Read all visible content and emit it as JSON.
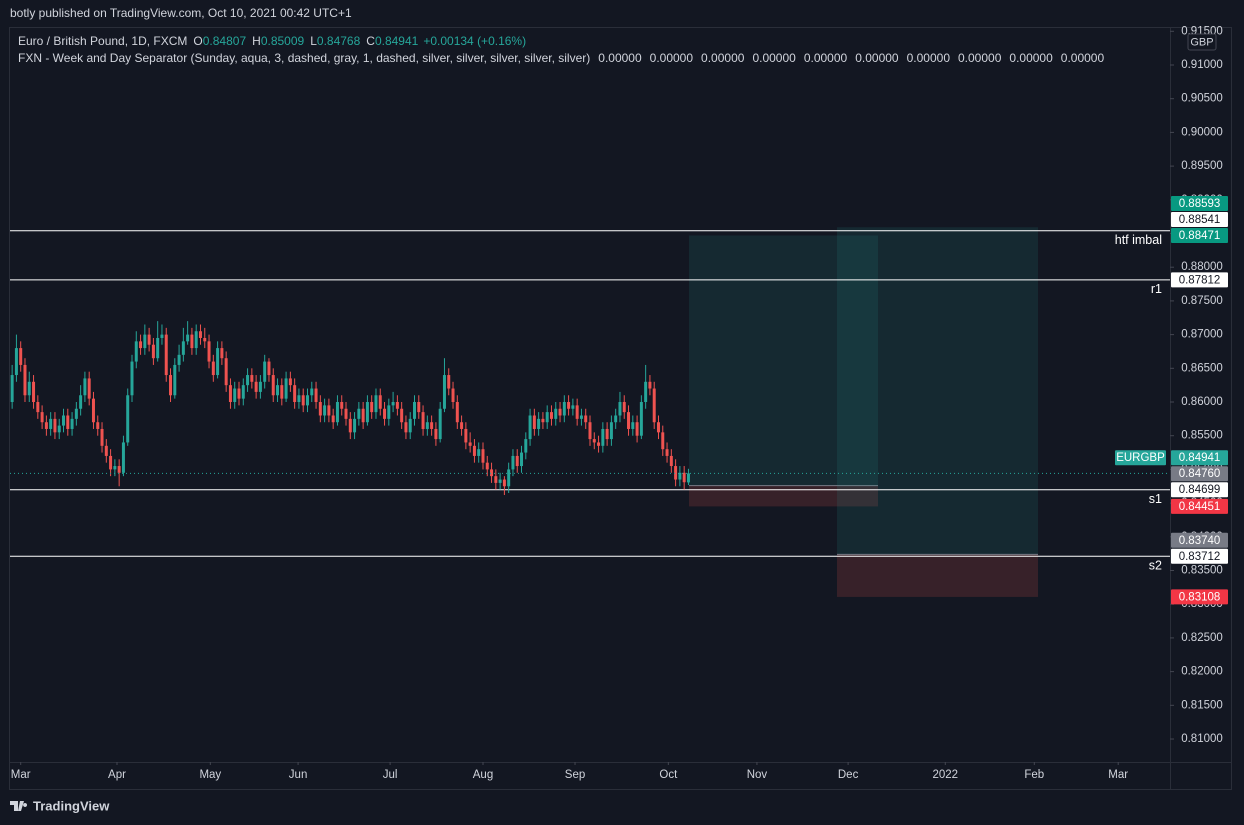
{
  "header": "botly published on TradingView.com, Oct 10, 2021 00:42 UTC+1",
  "footer": "TradingView",
  "chart_data": {
    "type": "candlestick",
    "title": "Euro / British Pound, 1D, FXCM",
    "ohlc_labels": [
      "O",
      "H",
      "L",
      "C"
    ],
    "change": "+0.00134 (+0.16%)",
    "indicator": "FXN - Week and Day Separator (Sunday, aqua, 3, dashed, gray, 1, dashed, silver, silver, silver, silver, silver)",
    "indicator_values": [
      "0.00000",
      "0.00000",
      "0.00000",
      "0.00000",
      "0.00000",
      "0.00000",
      "0.00000",
      "0.00000",
      "0.00000",
      "0.00000"
    ],
    "currency": "GBP",
    "symbol": "EURGBP",
    "up_color": "#26a69a",
    "down_color": "#ef5350",
    "ohlc": [
      [
        0.86,
        0.8655,
        0.859,
        0.864
      ],
      [
        0.864,
        0.87,
        0.863,
        0.868
      ],
      [
        0.868,
        0.869,
        0.8645,
        0.8655
      ],
      [
        0.8655,
        0.8665,
        0.86,
        0.861
      ],
      [
        0.861,
        0.8645,
        0.86,
        0.863
      ],
      [
        0.863,
        0.864,
        0.859,
        0.86
      ],
      [
        0.86,
        0.861,
        0.8575,
        0.8585
      ],
      [
        0.8585,
        0.8595,
        0.856,
        0.857
      ],
      [
        0.857,
        0.858,
        0.855,
        0.856
      ],
      [
        0.856,
        0.8585,
        0.855,
        0.8575
      ],
      [
        0.8575,
        0.8585,
        0.8545,
        0.8555
      ],
      [
        0.8555,
        0.8575,
        0.8545,
        0.8565
      ],
      [
        0.8565,
        0.859,
        0.8555,
        0.858
      ],
      [
        0.858,
        0.859,
        0.855,
        0.856
      ],
      [
        0.856,
        0.8585,
        0.855,
        0.8575
      ],
      [
        0.8575,
        0.86,
        0.8565,
        0.859
      ],
      [
        0.859,
        0.8625,
        0.858,
        0.861
      ],
      [
        0.861,
        0.8645,
        0.86,
        0.8635
      ],
      [
        0.8635,
        0.8645,
        0.8595,
        0.8605
      ],
      [
        0.8605,
        0.8615,
        0.856,
        0.857
      ],
      [
        0.857,
        0.858,
        0.855,
        0.856
      ],
      [
        0.856,
        0.857,
        0.8525,
        0.8535
      ],
      [
        0.8535,
        0.8545,
        0.851,
        0.852
      ],
      [
        0.852,
        0.853,
        0.849,
        0.85
      ],
      [
        0.85,
        0.8515,
        0.849,
        0.8505
      ],
      [
        0.8505,
        0.8515,
        0.8475,
        0.8495
      ],
      [
        0.8495,
        0.855,
        0.849,
        0.854
      ],
      [
        0.854,
        0.862,
        0.8535,
        0.861
      ],
      [
        0.861,
        0.867,
        0.86,
        0.866
      ],
      [
        0.866,
        0.8705,
        0.865,
        0.869
      ],
      [
        0.869,
        0.87,
        0.867,
        0.868
      ],
      [
        0.868,
        0.8715,
        0.867,
        0.87
      ],
      [
        0.87,
        0.871,
        0.8675,
        0.8685
      ],
      [
        0.8685,
        0.8695,
        0.8655,
        0.8665
      ],
      [
        0.8665,
        0.872,
        0.866,
        0.8695
      ],
      [
        0.8695,
        0.8715,
        0.8685,
        0.87
      ],
      [
        0.87,
        0.871,
        0.863,
        0.864
      ],
      [
        0.864,
        0.865,
        0.86,
        0.861
      ],
      [
        0.861,
        0.8665,
        0.8605,
        0.8655
      ],
      [
        0.8655,
        0.8685,
        0.8645,
        0.867
      ],
      [
        0.867,
        0.871,
        0.866,
        0.869
      ],
      [
        0.869,
        0.872,
        0.8685,
        0.87
      ],
      [
        0.87,
        0.871,
        0.867,
        0.868
      ],
      [
        0.868,
        0.8715,
        0.867,
        0.8705
      ],
      [
        0.8705,
        0.8715,
        0.8685,
        0.8695
      ],
      [
        0.8695,
        0.871,
        0.868,
        0.869
      ],
      [
        0.869,
        0.87,
        0.865,
        0.866
      ],
      [
        0.866,
        0.867,
        0.863,
        0.864
      ],
      [
        0.864,
        0.869,
        0.8635,
        0.868
      ],
      [
        0.868,
        0.869,
        0.8655,
        0.8665
      ],
      [
        0.8665,
        0.8675,
        0.8615,
        0.8625
      ],
      [
        0.8625,
        0.8635,
        0.859,
        0.86
      ],
      [
        0.86,
        0.863,
        0.859,
        0.862
      ],
      [
        0.862,
        0.863,
        0.8595,
        0.8605
      ],
      [
        0.8605,
        0.8635,
        0.8595,
        0.8625
      ],
      [
        0.8625,
        0.865,
        0.8615,
        0.864
      ],
      [
        0.864,
        0.865,
        0.862,
        0.863
      ],
      [
        0.863,
        0.864,
        0.8605,
        0.8615
      ],
      [
        0.8615,
        0.864,
        0.8605,
        0.863
      ],
      [
        0.863,
        0.867,
        0.862,
        0.866
      ],
      [
        0.866,
        0.8665,
        0.863,
        0.864
      ],
      [
        0.864,
        0.865,
        0.86,
        0.861
      ],
      [
        0.861,
        0.8635,
        0.86,
        0.8625
      ],
      [
        0.8625,
        0.8635,
        0.8595,
        0.8605
      ],
      [
        0.8605,
        0.8645,
        0.86,
        0.8635
      ],
      [
        0.8635,
        0.8645,
        0.8615,
        0.8625
      ],
      [
        0.8625,
        0.8635,
        0.859,
        0.86
      ],
      [
        0.86,
        0.862,
        0.859,
        0.861
      ],
      [
        0.861,
        0.862,
        0.8585,
        0.8595
      ],
      [
        0.8595,
        0.862,
        0.8585,
        0.861
      ],
      [
        0.861,
        0.863,
        0.86,
        0.862
      ],
      [
        0.862,
        0.863,
        0.859,
        0.86
      ],
      [
        0.86,
        0.861,
        0.857,
        0.858
      ],
      [
        0.858,
        0.8605,
        0.857,
        0.8595
      ],
      [
        0.8595,
        0.8605,
        0.857,
        0.858
      ],
      [
        0.858,
        0.859,
        0.856,
        0.857
      ],
      [
        0.857,
        0.861,
        0.8565,
        0.86
      ],
      [
        0.86,
        0.861,
        0.858,
        0.859
      ],
      [
        0.859,
        0.86,
        0.8565,
        0.8575
      ],
      [
        0.8575,
        0.8585,
        0.8545,
        0.8555
      ],
      [
        0.8555,
        0.8585,
        0.8545,
        0.8575
      ],
      [
        0.8575,
        0.86,
        0.8565,
        0.859
      ],
      [
        0.859,
        0.86,
        0.856,
        0.857
      ],
      [
        0.857,
        0.861,
        0.8565,
        0.86
      ],
      [
        0.86,
        0.861,
        0.8575,
        0.8585
      ],
      [
        0.8585,
        0.862,
        0.8575,
        0.861
      ],
      [
        0.861,
        0.862,
        0.858,
        0.859
      ],
      [
        0.859,
        0.86,
        0.8565,
        0.8575
      ],
      [
        0.8575,
        0.8605,
        0.8565,
        0.8595
      ],
      [
        0.8595,
        0.8615,
        0.8585,
        0.86
      ],
      [
        0.86,
        0.861,
        0.858,
        0.859
      ],
      [
        0.859,
        0.86,
        0.856,
        0.857
      ],
      [
        0.857,
        0.858,
        0.8545,
        0.8555
      ],
      [
        0.8555,
        0.8585,
        0.8545,
        0.8575
      ],
      [
        0.8575,
        0.861,
        0.8565,
        0.86
      ],
      [
        0.86,
        0.861,
        0.8575,
        0.8585
      ],
      [
        0.8585,
        0.8595,
        0.855,
        0.856
      ],
      [
        0.856,
        0.858,
        0.855,
        0.857
      ],
      [
        0.857,
        0.858,
        0.855,
        0.856
      ],
      [
        0.856,
        0.857,
        0.8535,
        0.8545
      ],
      [
        0.8545,
        0.86,
        0.854,
        0.859
      ],
      [
        0.859,
        0.8665,
        0.8585,
        0.864
      ],
      [
        0.864,
        0.865,
        0.861,
        0.862
      ],
      [
        0.862,
        0.863,
        0.859,
        0.86
      ],
      [
        0.86,
        0.861,
        0.856,
        0.857
      ],
      [
        0.857,
        0.858,
        0.855,
        0.856
      ],
      [
        0.856,
        0.857,
        0.853,
        0.854
      ],
      [
        0.854,
        0.8555,
        0.8525,
        0.8535
      ],
      [
        0.8535,
        0.8545,
        0.851,
        0.852
      ],
      [
        0.852,
        0.854,
        0.851,
        0.853
      ],
      [
        0.853,
        0.854,
        0.85,
        0.851
      ],
      [
        0.851,
        0.852,
        0.849,
        0.85
      ],
      [
        0.85,
        0.851,
        0.848,
        0.849
      ],
      [
        0.849,
        0.85,
        0.847,
        0.848
      ],
      [
        0.848,
        0.8495,
        0.847,
        0.8485
      ],
      [
        0.8485,
        0.849,
        0.8462,
        0.8475
      ],
      [
        0.8475,
        0.851,
        0.8465,
        0.85
      ],
      [
        0.85,
        0.853,
        0.849,
        0.852
      ],
      [
        0.852,
        0.853,
        0.8495,
        0.8505
      ],
      [
        0.8505,
        0.8535,
        0.8495,
        0.8525
      ],
      [
        0.8525,
        0.8555,
        0.8515,
        0.8545
      ],
      [
        0.8545,
        0.859,
        0.8535,
        0.858
      ],
      [
        0.858,
        0.859,
        0.855,
        0.856
      ],
      [
        0.856,
        0.8585,
        0.855,
        0.8575
      ],
      [
        0.8575,
        0.8585,
        0.856,
        0.857
      ],
      [
        0.857,
        0.8595,
        0.856,
        0.8585
      ],
      [
        0.8585,
        0.8595,
        0.8565,
        0.8575
      ],
      [
        0.8575,
        0.86,
        0.8565,
        0.859
      ],
      [
        0.859,
        0.86,
        0.857,
        0.858
      ],
      [
        0.858,
        0.861,
        0.857,
        0.86
      ],
      [
        0.86,
        0.861,
        0.858,
        0.859
      ],
      [
        0.859,
        0.8605,
        0.858,
        0.8595
      ],
      [
        0.8595,
        0.8605,
        0.8565,
        0.8575
      ],
      [
        0.8575,
        0.859,
        0.8565,
        0.858
      ],
      [
        0.858,
        0.859,
        0.856,
        0.857
      ],
      [
        0.857,
        0.858,
        0.8535,
        0.8545
      ],
      [
        0.8545,
        0.8555,
        0.853,
        0.854
      ],
      [
        0.854,
        0.855,
        0.8525,
        0.8535
      ],
      [
        0.8535,
        0.857,
        0.8525,
        0.856
      ],
      [
        0.856,
        0.857,
        0.8535,
        0.8545
      ],
      [
        0.8545,
        0.858,
        0.8535,
        0.857
      ],
      [
        0.857,
        0.859,
        0.856,
        0.858
      ],
      [
        0.858,
        0.8615,
        0.857,
        0.86
      ],
      [
        0.86,
        0.861,
        0.8575,
        0.8585
      ],
      [
        0.8585,
        0.8595,
        0.855,
        0.856
      ],
      [
        0.856,
        0.858,
        0.855,
        0.857
      ],
      [
        0.857,
        0.858,
        0.854,
        0.855
      ],
      [
        0.855,
        0.861,
        0.8545,
        0.86
      ],
      [
        0.86,
        0.8655,
        0.859,
        0.863
      ],
      [
        0.863,
        0.864,
        0.861,
        0.862
      ],
      [
        0.862,
        0.863,
        0.856,
        0.857
      ],
      [
        0.857,
        0.858,
        0.8545,
        0.8555
      ],
      [
        0.8555,
        0.8565,
        0.852,
        0.853
      ],
      [
        0.853,
        0.854,
        0.851,
        0.852
      ],
      [
        0.852,
        0.853,
        0.8495,
        0.8505
      ],
      [
        0.8505,
        0.8515,
        0.8475,
        0.8485
      ],
      [
        0.8485,
        0.8505,
        0.8475,
        0.8495
      ],
      [
        0.8495,
        0.8505,
        0.847,
        0.8481
      ],
      [
        0.84807,
        0.85009,
        0.84768,
        0.84941
      ]
    ],
    "xlim": [
      -0.5,
      270.5
    ],
    "xticks": [
      {
        "value": 2,
        "label": "Mar"
      },
      {
        "value": 24.5,
        "label": "Apr"
      },
      {
        "value": 46.3,
        "label": "May"
      },
      {
        "value": 66.8,
        "label": "Jun"
      },
      {
        "value": 88.3,
        "label": "Jul"
      },
      {
        "value": 110,
        "label": "Aug"
      },
      {
        "value": 131.5,
        "label": "Sep"
      },
      {
        "value": 153.3,
        "label": "Oct"
      },
      {
        "value": 174,
        "label": "Nov"
      },
      {
        "value": 195.3,
        "label": "Dec"
      },
      {
        "value": 218,
        "label": "2022"
      },
      {
        "value": 238.8,
        "label": "Feb"
      },
      {
        "value": 258.4,
        "label": "Mar"
      }
    ],
    "ylim": [
      0.80659,
      0.91638
    ],
    "yticks": [
      {
        "value": 0.81,
        "label": "0.81000"
      },
      {
        "value": 0.815,
        "label": "0.81500"
      },
      {
        "value": 0.82,
        "label": "0.82000"
      },
      {
        "value": 0.825,
        "label": "0.82500"
      },
      {
        "value": 0.83,
        "label": "0.83000"
      },
      {
        "value": 0.835,
        "label": "0.83500"
      },
      {
        "value": 0.84,
        "label": "0.84000"
      },
      {
        "value": 0.845,
        "label": "0.84500"
      },
      {
        "value": 0.85,
        "label": "0.85000"
      },
      {
        "value": 0.855,
        "label": "0.85500"
      },
      {
        "value": 0.86,
        "label": "0.86000"
      },
      {
        "value": 0.865,
        "label": "0.86500"
      },
      {
        "value": 0.87,
        "label": "0.87000"
      },
      {
        "value": 0.875,
        "label": "0.87500"
      },
      {
        "value": 0.88,
        "label": "0.88000"
      },
      {
        "value": 0.885,
        "label": "0.88500"
      },
      {
        "value": 0.89,
        "label": "0.89000"
      },
      {
        "value": 0.895,
        "label": "0.89500"
      },
      {
        "value": 0.9,
        "label": "0.90000"
      },
      {
        "value": 0.905,
        "label": "0.90500"
      },
      {
        "value": 0.91,
        "label": "0.91000"
      },
      {
        "value": 0.915,
        "label": "0.91500"
      }
    ],
    "price_lines": [
      {
        "name": "htf imbal",
        "value": 0.88541
      },
      {
        "name": "r1",
        "value": 0.87812
      },
      {
        "name": "s1",
        "value": 0.84699
      },
      {
        "name": "s2",
        "value": 0.83712
      }
    ],
    "positions": [
      {
        "target": 0.88471,
        "entry": {
          "value": 0.8476,
          "label": "0.84760"
        },
        "stop": 0.84451
      },
      {
        "target": 0.88593,
        "entry": {
          "value": 0.8374,
          "label": "0.83740"
        },
        "stop": 0.83108
      }
    ]
  }
}
